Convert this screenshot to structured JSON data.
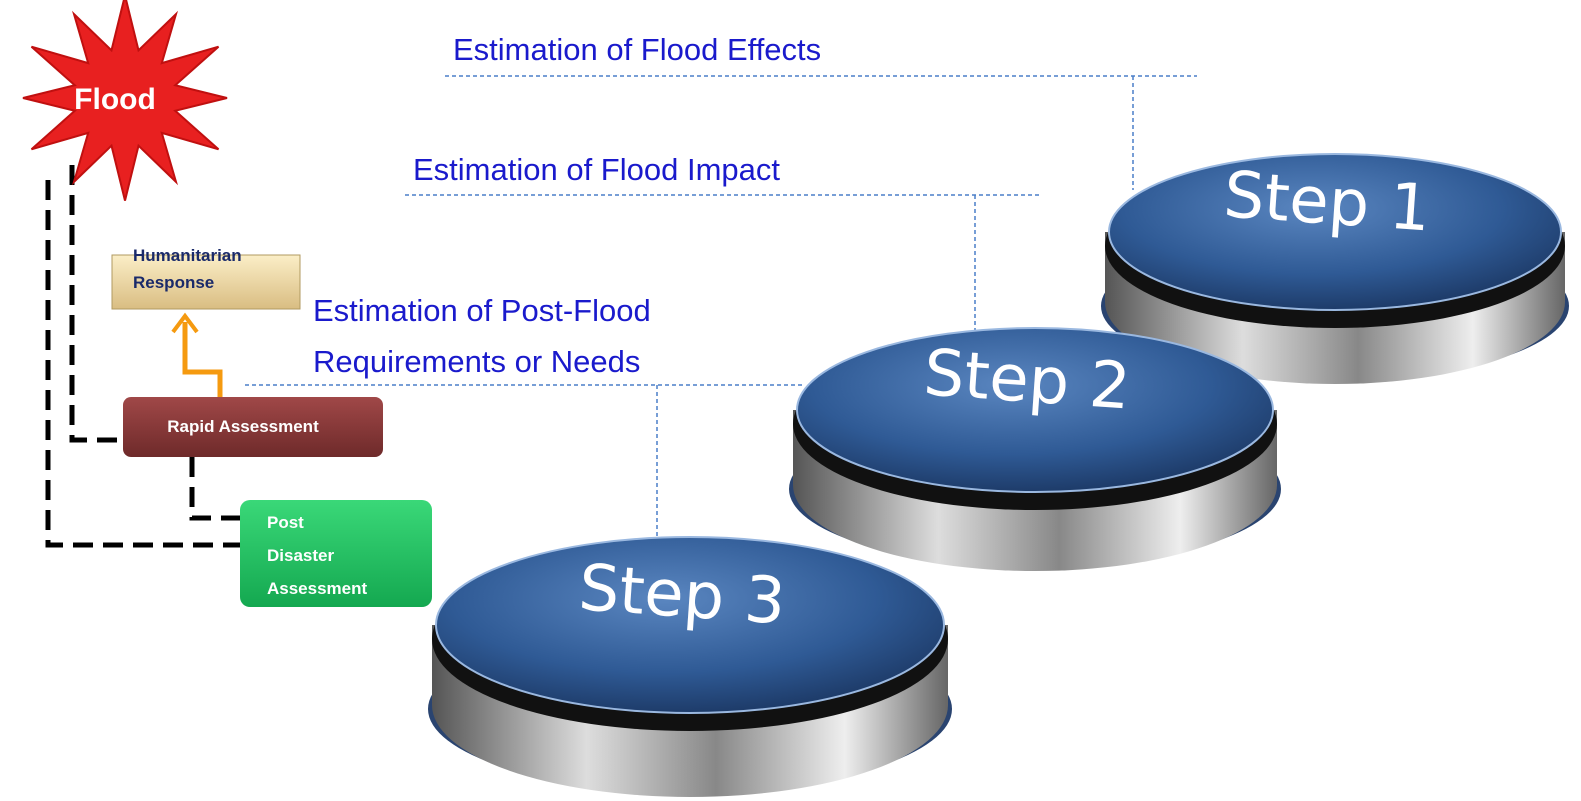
{
  "flood": "Flood",
  "boxes": {
    "humanitarian": [
      "Humanitarian",
      "Response"
    ],
    "rapid": "Rapid Assessment",
    "post": [
      "Post",
      "Disaster",
      "Assessment"
    ]
  },
  "estimations": {
    "effects": "Estimation of Flood Effects",
    "impact": "Estimation of Flood Impact",
    "needs": [
      "Estimation of Post-Flood",
      "Requirements or Needs"
    ]
  },
  "steps": [
    "Step 1",
    "Step 2",
    "Step 3"
  ]
}
